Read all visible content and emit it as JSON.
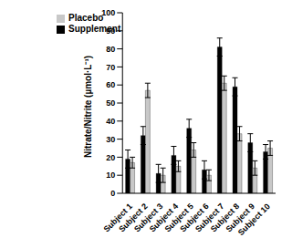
{
  "chart_data": {
    "type": "bar",
    "y_label": "Nitrate/Nitrite (µmol·L⁻¹)",
    "categories": [
      "Subject 1",
      "Subject 2",
      "Subject 3",
      "Subject 4",
      "Subject 5",
      "Subject 6",
      "Subject 7",
      "Subject 8",
      "Subject 9",
      "Subject 10"
    ],
    "series": [
      {
        "name": "Supplement",
        "color": "#000000",
        "values": [
          19,
          32,
          11,
          21,
          36,
          13,
          81,
          59,
          28,
          23
        ],
        "errors": [
          5,
          5,
          5,
          5,
          5,
          5,
          5,
          5,
          5,
          4
        ]
      },
      {
        "name": "Placebo",
        "color": "#c8c8c8",
        "values": [
          17,
          57,
          10,
          15,
          24,
          10,
          61,
          33,
          14,
          25
        ],
        "errors": [
          3,
          4,
          4,
          3,
          4,
          3,
          4,
          4,
          4,
          4
        ]
      }
    ],
    "ylim": [
      0,
      100
    ],
    "yticks": [
      0,
      10,
      20,
      30,
      40,
      50,
      60,
      70,
      80,
      90,
      100
    ],
    "grid": false,
    "legend": "upper left"
  }
}
